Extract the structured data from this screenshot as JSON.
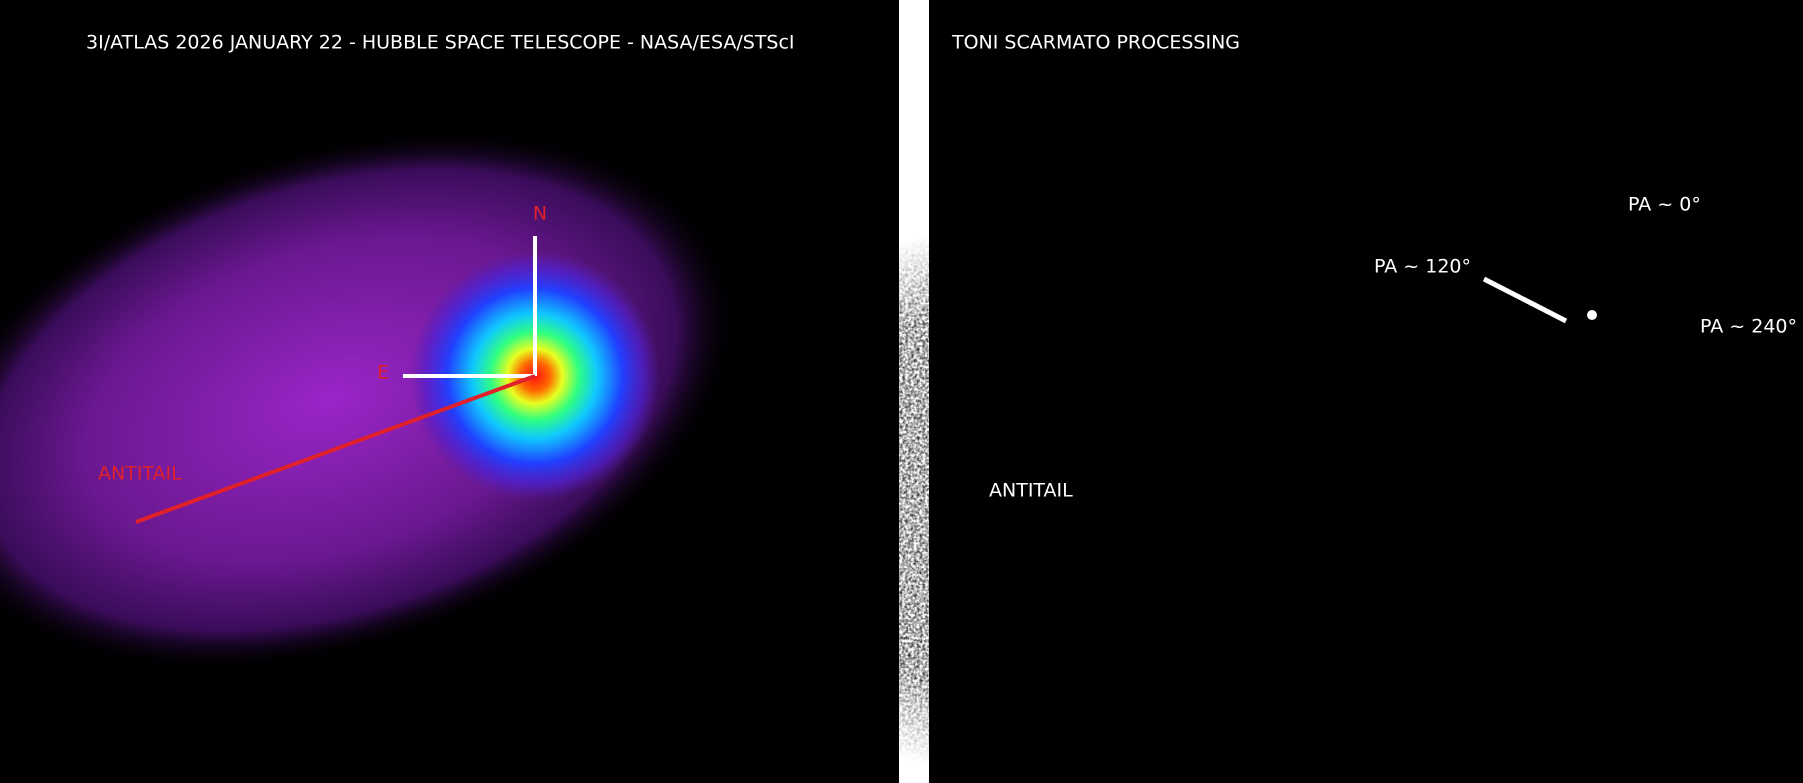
{
  "left_panel": {
    "title": "3I/ATLAS 2026 JANUARY 22 - HUBBLE SPACE TELESCOPE - NASA/ESA/STScI",
    "north_label": "N",
    "east_label": "E",
    "antitail_label": "ANTITAIL"
  },
  "right_panel": {
    "title": "TONI SCARMATO PROCESSING",
    "antitail_label": "ANTITAIL",
    "pa_labels": [
      "PA ~ 0°",
      "PA ~ 120°",
      "PA ~ 240°"
    ]
  }
}
